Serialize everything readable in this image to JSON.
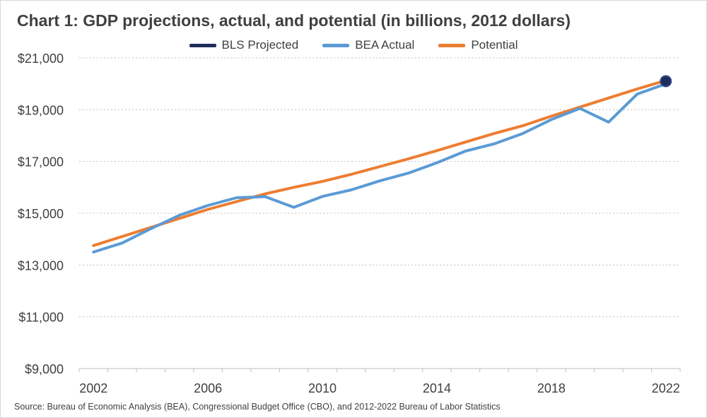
{
  "chart_data": {
    "type": "line",
    "title": "Chart 1: GDP projections, actual, and potential (in billions, 2012 dollars)",
    "source": "Source: Bureau of Economic Analysis (BEA), Congressional Budget Office (CBO), and 2012-2022 Bureau of Labor Statistics",
    "xlabel": "",
    "ylabel": "",
    "x_ticks": [
      "2002",
      "2006",
      "2010",
      "2014",
      "2018",
      "2022"
    ],
    "y_ticks": [
      "$9,000",
      "$11,000",
      "$13,000",
      "$15,000",
      "$17,000",
      "$19,000",
      "$21,000"
    ],
    "ylim": [
      9000,
      21000
    ],
    "xlim": [
      2002,
      2022
    ],
    "grid": "horizontal dotted",
    "legend_position": "top",
    "x": [
      2002,
      2003,
      2004,
      2005,
      2006,
      2007,
      2008,
      2009,
      2010,
      2011,
      2012,
      2013,
      2014,
      2015,
      2016,
      2017,
      2018,
      2019,
      2020,
      2021,
      2022
    ],
    "series": [
      {
        "name": "BLS Projected",
        "color": "#1f2d5a",
        "marker": "circle",
        "points": [
          {
            "x": 2022,
            "y": 20100
          }
        ]
      },
      {
        "name": "BEA Actual",
        "color": "#5b9bd5",
        "values": [
          13500,
          13850,
          14400,
          14920,
          15300,
          15600,
          15640,
          15230,
          15650,
          15900,
          16250,
          16550,
          16950,
          17400,
          17680,
          18080,
          18620,
          19050,
          18520,
          19600,
          20000
        ]
      },
      {
        "name": "Potential",
        "color": "#ed7d31",
        "values": [
          13750,
          14100,
          14450,
          14800,
          15150,
          15450,
          15750,
          16000,
          16230,
          16500,
          16800,
          17100,
          17420,
          17750,
          18080,
          18380,
          18750,
          19100,
          19450,
          19800,
          20130
        ]
      }
    ]
  }
}
